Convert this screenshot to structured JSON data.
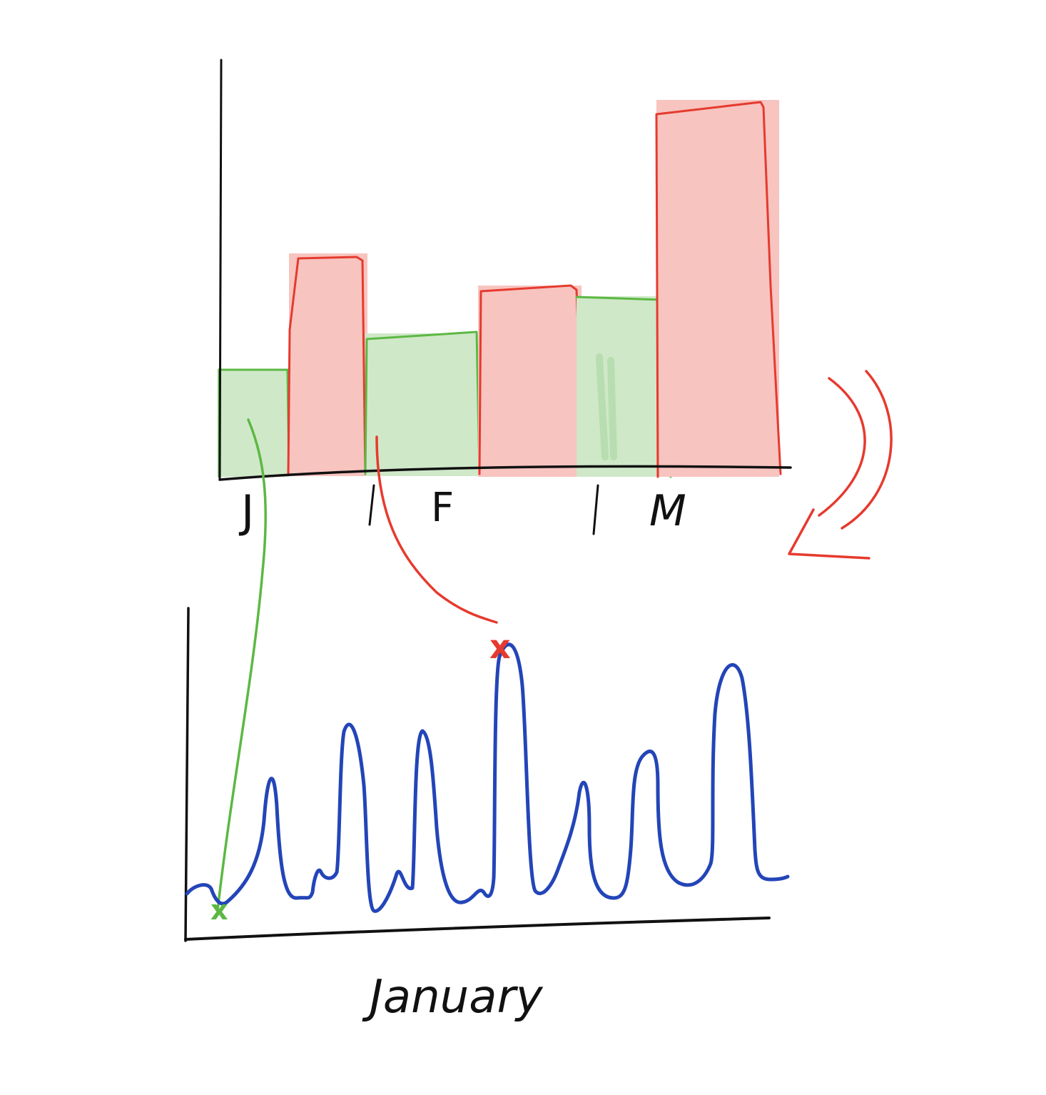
{
  "colors": {
    "ink": "#111111",
    "bar_red_fill": "#f7c4c0",
    "bar_red_stroke": "#e63a2e",
    "bar_green_fill": "#cfe8c8",
    "bar_green_stroke": "#5cb843",
    "line_blue": "#2345b8",
    "connector_green": "#5cb843",
    "connector_red": "#e63a2e",
    "arrow_red": "#e63a2e"
  },
  "top_chart": {
    "month_labels": [
      "J",
      "F",
      "M"
    ],
    "bars": [
      {
        "color": "green",
        "value": 1.0
      },
      {
        "color": "red",
        "value": 2.1
      },
      {
        "color": "green",
        "value": 1.35
      },
      {
        "color": "red",
        "value": 1.8
      },
      {
        "color": "green",
        "value": 1.7
      },
      {
        "color": "red",
        "value": 3.6
      }
    ]
  },
  "bottom_chart": {
    "xlabel": "January",
    "series_values": [
      0.2,
      0.25,
      0.0,
      0.4,
      1.2,
      0.15,
      0.35,
      1.6,
      0.05,
      0.3,
      1.5,
      0.1,
      0.2,
      2.1,
      0.15,
      0.4,
      1.1,
      0.15,
      1.3,
      0.2,
      0.3,
      2.1,
      0.2,
      0.2
    ]
  },
  "annotations": {
    "green_marker": "x",
    "red_marker": "x"
  }
}
